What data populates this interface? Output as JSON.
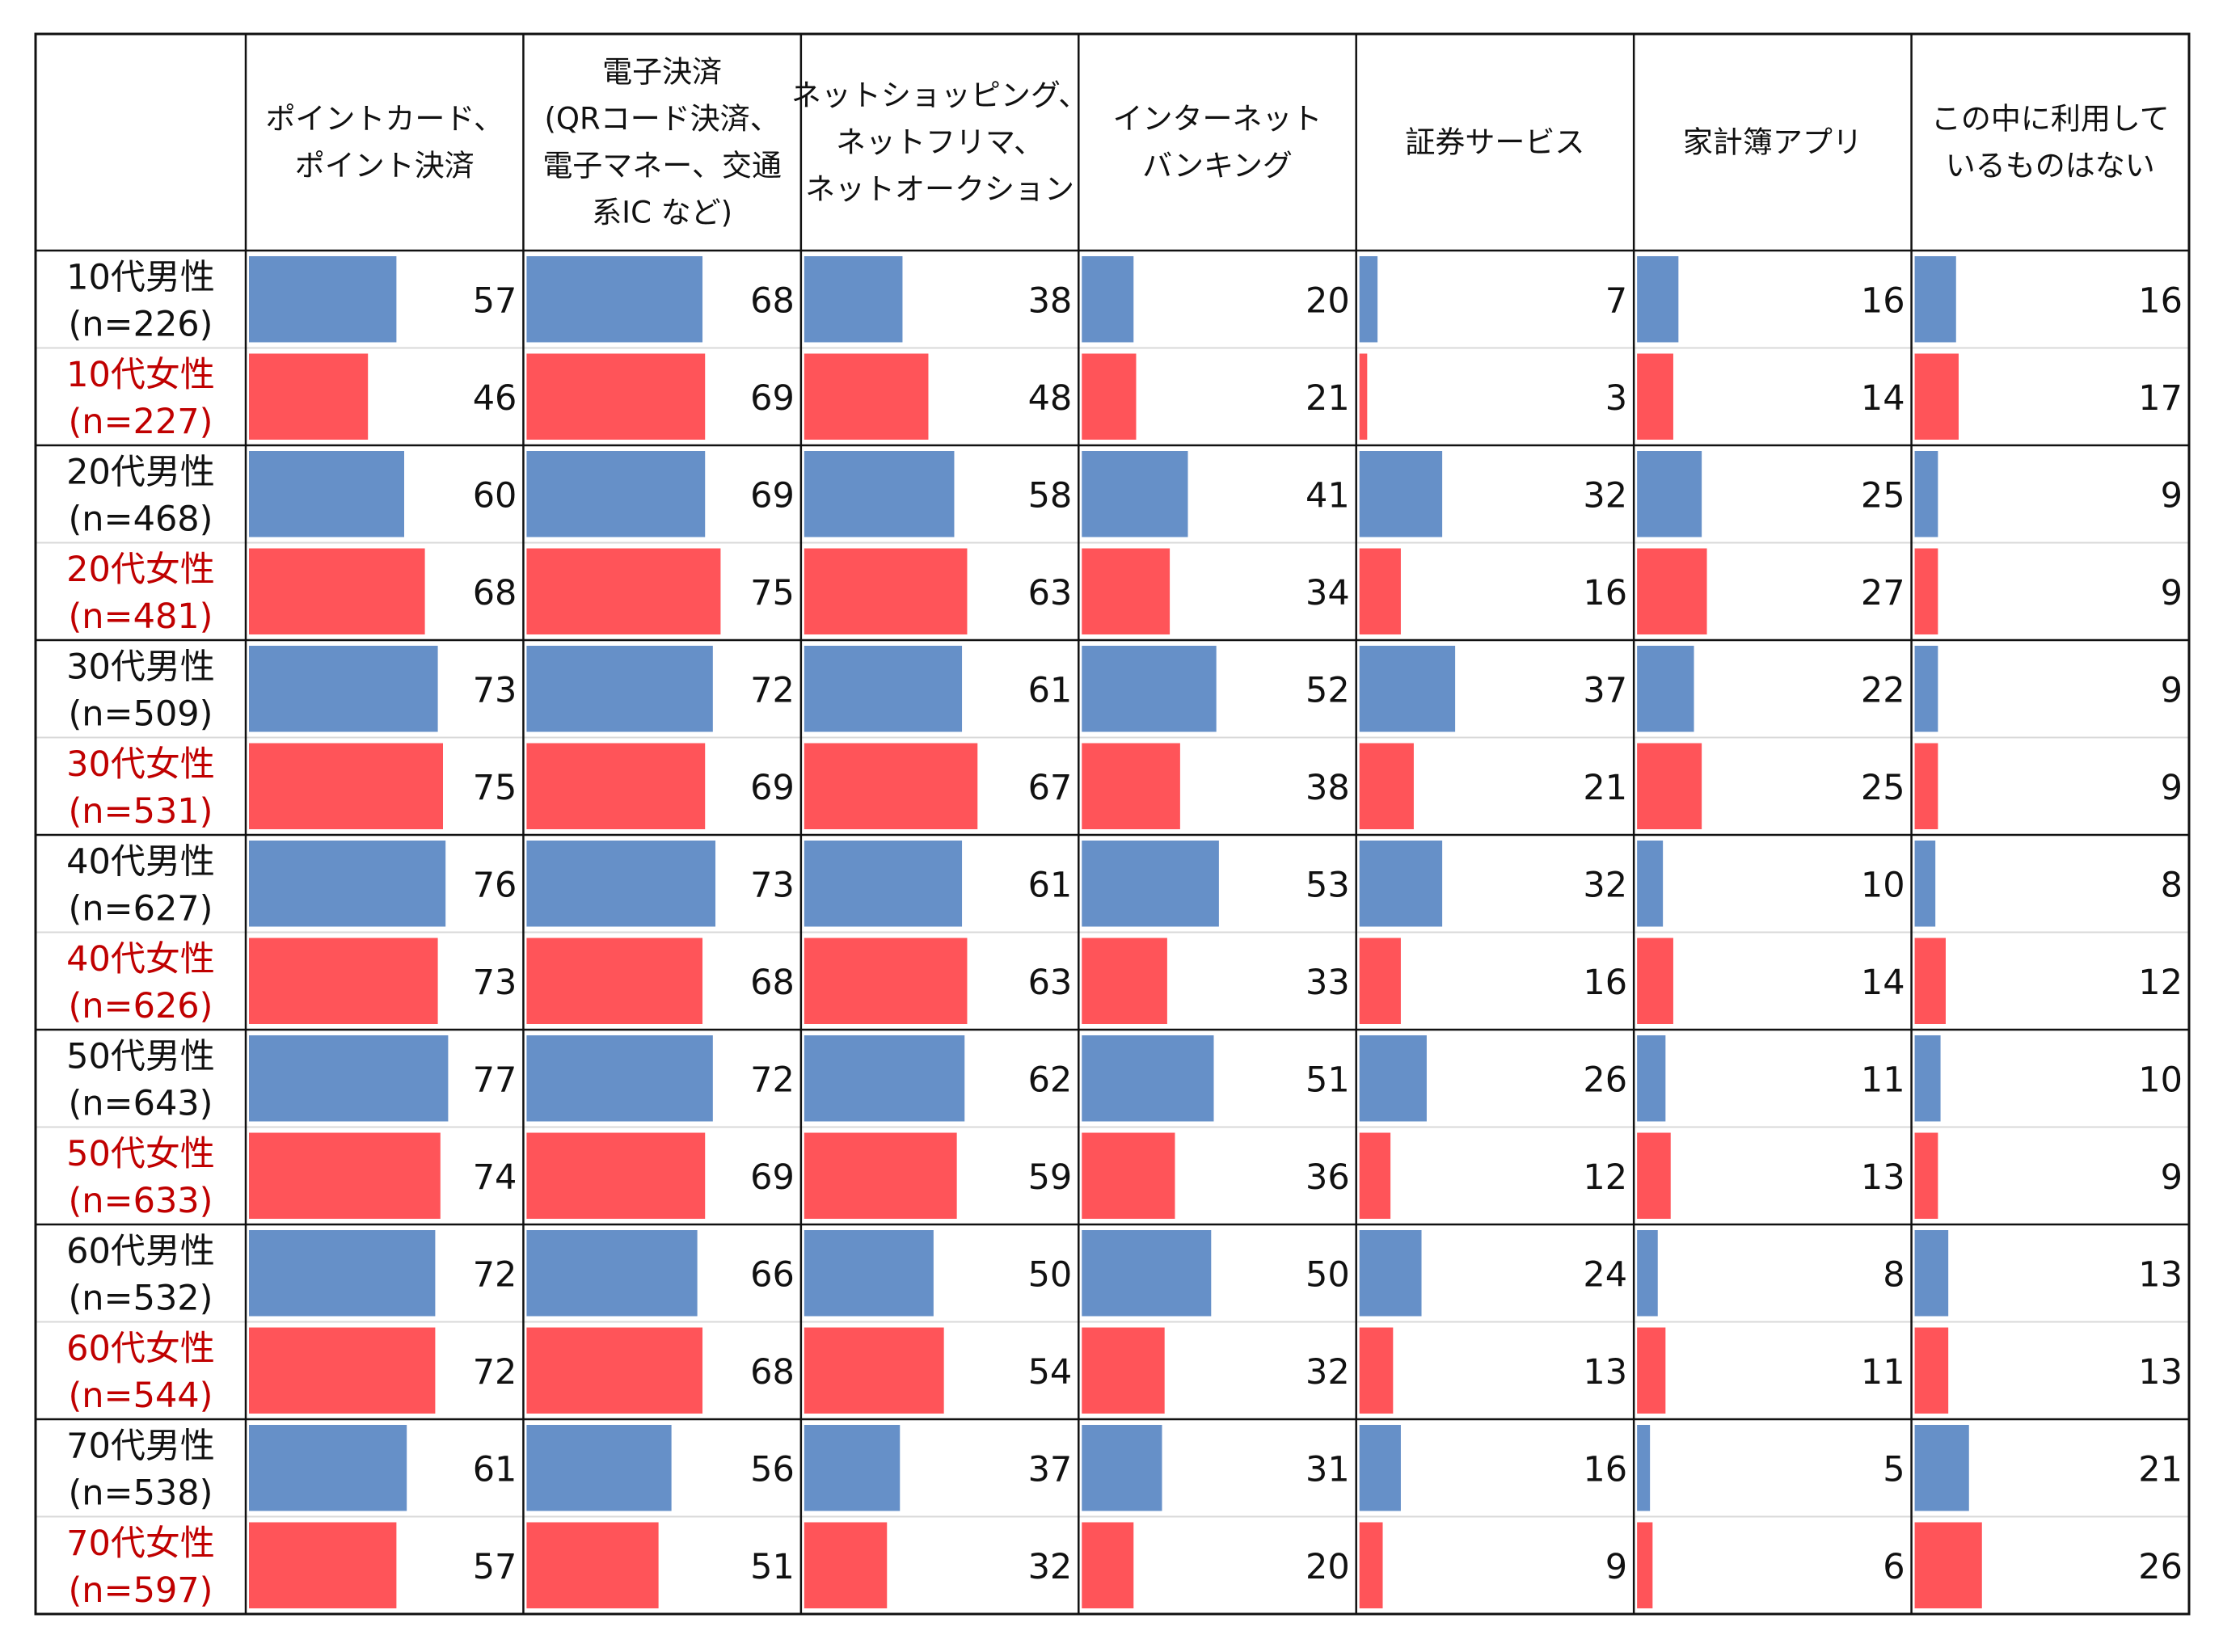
{
  "chart_data": {
    "type": "table",
    "unit": "%",
    "row_header": "",
    "columns": [
      "ポイントカード、ポイント決済",
      "電子決済(QRコード決済、電子マネー、交通系IC など)",
      "ネットショッピング、ネットフリマ、ネットオークション",
      "インターネットバンキング",
      "証券サービス",
      "家計簿アプリ",
      "この中に利用しているものはない"
    ],
    "column_header_lines": [
      [
        "ポイントカード、",
        "ポイント決済"
      ],
      [
        "電子決済",
        "(QRコード決済、",
        "電子マネー、交通",
        "系IC など)"
      ],
      [
        "ネットショッピング、",
        "ネットフリマ、",
        "ネットオークション"
      ],
      [
        "インターネット",
        "バンキング"
      ],
      [
        "証券サービス"
      ],
      [
        "家計簿アプリ"
      ],
      [
        "この中に利用して",
        "いるものはない"
      ]
    ],
    "rows": [
      {
        "label": "10代男性",
        "n": "(n=226)",
        "gender": "male",
        "values": [
          57,
          68,
          38,
          20,
          7,
          16,
          16
        ]
      },
      {
        "label": "10代女性",
        "n": "(n=227)",
        "gender": "female",
        "values": [
          46,
          69,
          48,
          21,
          3,
          14,
          17
        ]
      },
      {
        "label": "20代男性",
        "n": "(n=468)",
        "gender": "male",
        "values": [
          60,
          69,
          58,
          41,
          32,
          25,
          9
        ]
      },
      {
        "label": "20代女性",
        "n": "(n=481)",
        "gender": "female",
        "values": [
          68,
          75,
          63,
          34,
          16,
          27,
          9
        ]
      },
      {
        "label": "30代男性",
        "n": "(n=509)",
        "gender": "male",
        "values": [
          73,
          72,
          61,
          52,
          37,
          22,
          9
        ]
      },
      {
        "label": "30代女性",
        "n": "(n=531)",
        "gender": "female",
        "values": [
          75,
          69,
          67,
          38,
          21,
          25,
          9
        ]
      },
      {
        "label": "40代男性",
        "n": "(n=627)",
        "gender": "male",
        "values": [
          76,
          73,
          61,
          53,
          32,
          10,
          8
        ]
      },
      {
        "label": "40代女性",
        "n": "(n=626)",
        "gender": "female",
        "values": [
          73,
          68,
          63,
          33,
          16,
          14,
          12
        ]
      },
      {
        "label": "50代男性",
        "n": "(n=643)",
        "gender": "male",
        "values": [
          77,
          72,
          62,
          51,
          26,
          11,
          10
        ]
      },
      {
        "label": "50代女性",
        "n": "(n=633)",
        "gender": "female",
        "values": [
          74,
          69,
          59,
          36,
          12,
          13,
          9
        ]
      },
      {
        "label": "60代男性",
        "n": "(n=532)",
        "gender": "male",
        "values": [
          72,
          66,
          50,
          50,
          24,
          8,
          13
        ]
      },
      {
        "label": "60代女性",
        "n": "(n=544)",
        "gender": "female",
        "values": [
          72,
          68,
          54,
          32,
          13,
          11,
          13
        ]
      },
      {
        "label": "70代男性",
        "n": "(n=538)",
        "gender": "male",
        "values": [
          61,
          56,
          37,
          31,
          16,
          5,
          21
        ]
      },
      {
        "label": "70代女性",
        "n": "(n=597)",
        "gender": "female",
        "values": [
          57,
          51,
          32,
          20,
          9,
          6,
          26
        ]
      }
    ],
    "bar_max": 100,
    "colors": {
      "male_bar": "#6690C8",
      "female_bar": "#FF5459",
      "male_label": "#111111",
      "female_label": "#C00000",
      "border": "#111111",
      "inner_divider": "#D9D9D9"
    }
  }
}
